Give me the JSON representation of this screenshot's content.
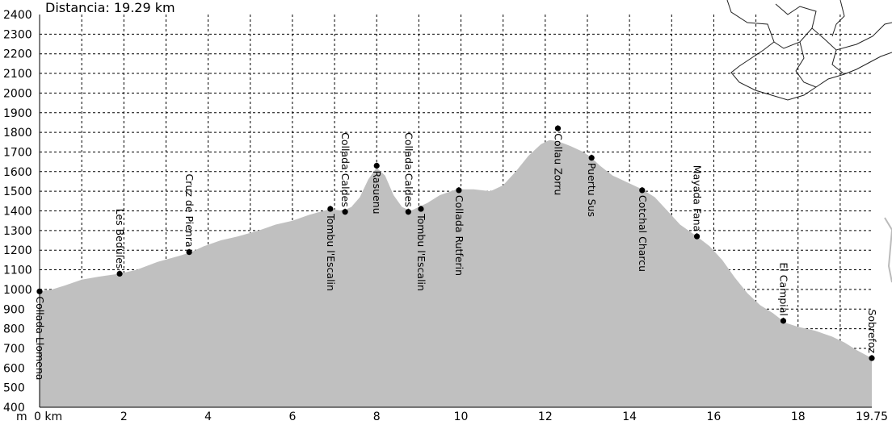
{
  "chart_data": {
    "type": "area",
    "title": "Distancia: 19.29 km",
    "y_unit": "m",
    "x_unit": "km",
    "xlim": [
      0,
      19.75
    ],
    "ylim": [
      400,
      2400
    ],
    "y_ticks": [
      2400,
      2300,
      2200,
      2100,
      2000,
      1900,
      1800,
      1700,
      1600,
      1500,
      1400,
      1300,
      1200,
      1100,
      1000,
      900,
      800,
      700,
      600,
      500,
      400
    ],
    "x_ticks": [
      0,
      2,
      4,
      6,
      8,
      10,
      12,
      14,
      16,
      18,
      19.75
    ],
    "x_tick_labels": [
      "0 km",
      "2",
      "4",
      "6",
      "8",
      "10",
      "12",
      "14",
      "16",
      "18",
      "19.75"
    ],
    "grid": true,
    "fill_color": "#c0c0c0",
    "profile": [
      [
        0,
        990
      ],
      [
        0.3,
        1000
      ],
      [
        0.6,
        1020
      ],
      [
        1.0,
        1050
      ],
      [
        1.4,
        1065
      ],
      [
        1.9,
        1080
      ],
      [
        2.3,
        1100
      ],
      [
        2.8,
        1140
      ],
      [
        3.3,
        1170
      ],
      [
        3.6,
        1190
      ],
      [
        3.9,
        1220
      ],
      [
        4.3,
        1250
      ],
      [
        4.7,
        1270
      ],
      [
        5.2,
        1300
      ],
      [
        5.6,
        1330
      ],
      [
        6.0,
        1350
      ],
      [
        6.4,
        1380
      ],
      [
        6.9,
        1410
      ],
      [
        7.2,
        1400
      ],
      [
        7.4,
        1420
      ],
      [
        7.6,
        1470
      ],
      [
        7.8,
        1560
      ],
      [
        8.0,
        1620
      ],
      [
        8.2,
        1580
      ],
      [
        8.4,
        1480
      ],
      [
        8.6,
        1420
      ],
      [
        8.8,
        1400
      ],
      [
        9.0,
        1420
      ],
      [
        9.2,
        1440
      ],
      [
        9.5,
        1480
      ],
      [
        9.9,
        1510
      ],
      [
        10.3,
        1510
      ],
      [
        10.7,
        1500
      ],
      [
        11.0,
        1530
      ],
      [
        11.3,
        1600
      ],
      [
        11.6,
        1680
      ],
      [
        11.9,
        1740
      ],
      [
        12.1,
        1760
      ],
      [
        12.3,
        1755
      ],
      [
        12.6,
        1730
      ],
      [
        12.9,
        1700
      ],
      [
        13.1,
        1670
      ],
      [
        13.3,
        1630
      ],
      [
        13.6,
        1580
      ],
      [
        13.9,
        1550
      ],
      [
        14.3,
        1510
      ],
      [
        14.6,
        1470
      ],
      [
        14.9,
        1400
      ],
      [
        15.2,
        1330
      ],
      [
        15.6,
        1270
      ],
      [
        15.9,
        1220
      ],
      [
        16.2,
        1150
      ],
      [
        16.5,
        1060
      ],
      [
        16.8,
        980
      ],
      [
        17.1,
        920
      ],
      [
        17.4,
        880
      ],
      [
        17.7,
        830
      ],
      [
        18.0,
        810
      ],
      [
        18.4,
        790
      ],
      [
        18.8,
        760
      ],
      [
        19.1,
        730
      ],
      [
        19.4,
        690
      ],
      [
        19.75,
        650
      ]
    ],
    "waypoints": [
      {
        "name": "Collada Llomena",
        "x": 0.0,
        "y": 990,
        "label_above": false
      },
      {
        "name": "Les Bedules",
        "x": 1.9,
        "y": 1080,
        "label_above": true
      },
      {
        "name": "Cruz de Pienra",
        "x": 3.55,
        "y": 1190,
        "label_above": true
      },
      {
        "name": "Tombu l'Escalin",
        "x": 6.9,
        "y": 1410,
        "label_above": false
      },
      {
        "name": "Collada Caldes",
        "x": 7.25,
        "y": 1395,
        "label_above": true
      },
      {
        "name": "Rasuenu",
        "x": 8.0,
        "y": 1630,
        "label_above": false
      },
      {
        "name": "Collada Caldes",
        "x": 8.75,
        "y": 1395,
        "label_above": true
      },
      {
        "name": "Tombu l'Escalin",
        "x": 9.05,
        "y": 1410,
        "label_above": false
      },
      {
        "name": "Collada Rutferin",
        "x": 9.95,
        "y": 1505,
        "label_above": false
      },
      {
        "name": "Collau Zorru",
        "x": 12.3,
        "y": 1820,
        "label_above": false
      },
      {
        "name": "Puertu Sus",
        "x": 13.1,
        "y": 1670,
        "label_above": false
      },
      {
        "name": "Cotchal Charcu",
        "x": 14.3,
        "y": 1505,
        "label_above": false
      },
      {
        "name": "Mayada Fana",
        "x": 15.6,
        "y": 1270,
        "label_above": true
      },
      {
        "name": "El Campial",
        "x": 17.65,
        "y": 840,
        "label_above": true
      },
      {
        "name": "Sobrefoz",
        "x": 19.75,
        "y": 650,
        "label_above": true
      }
    ]
  }
}
